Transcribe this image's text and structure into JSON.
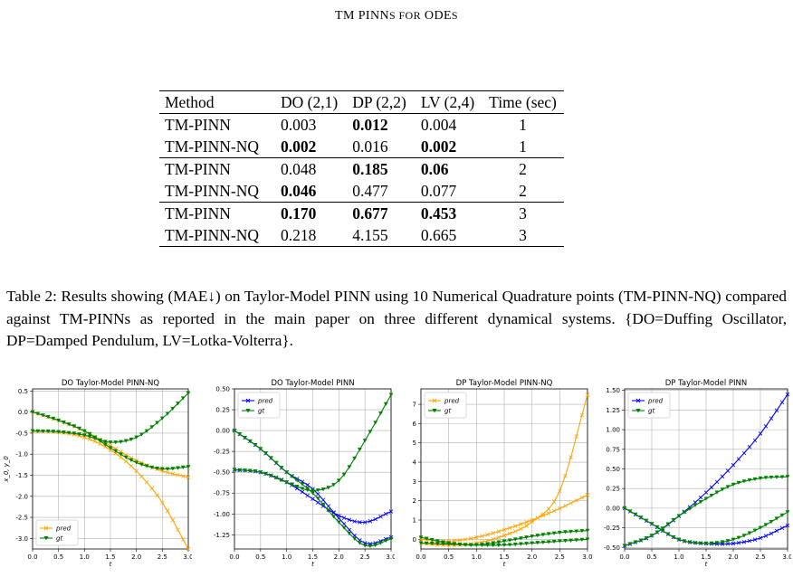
{
  "header": {
    "title_main": "TM PINN",
    "title_sc": "s for",
    "title_end": " ODE",
    "title_sc2": "s"
  },
  "table": {
    "columns": [
      "Method",
      "DO (2,1)",
      "DP (2,2)",
      "LV (2,4)",
      "Time (sec)"
    ],
    "rows": [
      {
        "cells": [
          "TM-PINN",
          "0.003",
          "0.012",
          "0.004",
          "1"
        ],
        "bold": [
          false,
          false,
          true,
          false,
          false
        ]
      },
      {
        "cells": [
          "TM-PINN-NQ",
          "0.002",
          "0.016",
          "0.002",
          "1"
        ],
        "bold": [
          false,
          true,
          false,
          true,
          false
        ]
      },
      {
        "cells": [
          "TM-PINN",
          "0.048",
          "0.185",
          "0.06",
          "2"
        ],
        "bold": [
          false,
          false,
          true,
          true,
          false
        ]
      },
      {
        "cells": [
          "TM-PINN-NQ",
          "0.046",
          "0.477",
          "0.077",
          "2"
        ],
        "bold": [
          false,
          true,
          false,
          false,
          false
        ]
      },
      {
        "cells": [
          "TM-PINN",
          "0.170",
          "0.677",
          "0.453",
          "3"
        ],
        "bold": [
          false,
          true,
          true,
          true,
          false
        ]
      },
      {
        "cells": [
          "TM-PINN-NQ",
          "0.218",
          "4.155",
          "0.665",
          "3"
        ],
        "bold": [
          false,
          false,
          false,
          false,
          false
        ]
      }
    ]
  },
  "caption": "Table 2: Results showing (MAE↓) on Taylor-Model PINN using 10 Numerical Quadrature points (TM-PINN-NQ) compared against TM-PINNs as reported in the main paper on three different dynamical systems. {DO=Duffing Oscillator, DP=Damped Pendulum, LV=Lotka-Volterra}.",
  "colors": {
    "pred_orange": "#ffa500",
    "pred_blue": "#0000ff",
    "gt": "#008000"
  },
  "chart_data": [
    {
      "type": "line",
      "title": "DO Taylor-Model PINN-NQ",
      "xlabel": "t",
      "ylabel": "x_0, y_0",
      "xlim": [
        0,
        3
      ],
      "ylim": [
        -3.25,
        0.55
      ],
      "xticks": [
        "0.0",
        "0.5",
        "1.0",
        "1.5",
        "2.0",
        "2.5",
        "3.0"
      ],
      "yticks": [
        "0.5",
        "0.0",
        "-0.5",
        "-1.0",
        "-1.5",
        "-2.0",
        "-2.5",
        "-3.0"
      ],
      "ytick_values": [
        0.5,
        0.0,
        -0.5,
        -1.0,
        -1.5,
        -2.0,
        -2.5,
        -3.0
      ],
      "legend": {
        "placement": "lower-left",
        "entries": [
          "pred",
          "gt"
        ]
      },
      "grid": true,
      "series": [
        {
          "name": "pred",
          "color": "#ffa500",
          "marker": "x",
          "x": [
            0,
            0.5,
            1,
            1.5,
            2,
            2.5,
            3
          ],
          "y": [
            -0.45,
            -0.48,
            -0.6,
            -0.9,
            -1.4,
            -2.15,
            -3.25
          ]
        },
        {
          "name": "pred",
          "color": "#ffa500",
          "marker": "x",
          "x": [
            0,
            0.5,
            1,
            1.5,
            2,
            2.5,
            3
          ],
          "y": [
            0.0,
            -0.2,
            -0.45,
            -0.8,
            -1.15,
            -1.4,
            -1.55
          ]
        },
        {
          "name": "gt",
          "color": "#008000",
          "marker": "v",
          "x": [
            0,
            0.5,
            1,
            1.5,
            2,
            2.5,
            3
          ],
          "y": [
            -0.45,
            -0.47,
            -0.55,
            -0.72,
            -0.6,
            -0.15,
            0.45
          ]
        },
        {
          "name": "gt",
          "color": "#008000",
          "marker": "v",
          "x": [
            0,
            0.5,
            1,
            1.5,
            2,
            2.5,
            3
          ],
          "y": [
            0.0,
            -0.2,
            -0.45,
            -0.85,
            -1.2,
            -1.35,
            -1.3
          ]
        }
      ]
    },
    {
      "type": "line",
      "title": "DO Taylor-Model PINN",
      "xlabel": "t",
      "ylabel": "",
      "xlim": [
        0,
        3
      ],
      "ylim": [
        -1.42,
        0.5
      ],
      "xticks": [
        "0.0",
        "0.5",
        "1.0",
        "1.5",
        "2.0",
        "2.5",
        "3.0"
      ],
      "yticks": [
        "0.50",
        "0.25",
        "0.00",
        "-0.25",
        "-0.50",
        "-0.75",
        "-1.00",
        "-1.25"
      ],
      "ytick_values": [
        0.5,
        0.25,
        0.0,
        -0.25,
        -0.5,
        -0.75,
        -1.0,
        -1.25
      ],
      "legend": {
        "placement": "upper-left",
        "entries": [
          "pred",
          "gt"
        ]
      },
      "grid": true,
      "series": [
        {
          "name": "pred",
          "color": "#0000ff",
          "marker": "x",
          "x": [
            0,
            0.5,
            1,
            1.5,
            2,
            2.5,
            3
          ],
          "y": [
            -0.47,
            -0.5,
            -0.62,
            -0.82,
            -1.02,
            -1.1,
            -0.97
          ]
        },
        {
          "name": "pred",
          "color": "#0000ff",
          "marker": "x",
          "x": [
            0,
            0.5,
            1,
            1.5,
            2,
            2.5,
            3
          ],
          "y": [
            0.0,
            -0.22,
            -0.5,
            -0.7,
            -1.05,
            -1.35,
            -1.28
          ]
        },
        {
          "name": "gt",
          "color": "#008000",
          "marker": "v",
          "x": [
            0,
            0.5,
            1,
            1.5,
            2,
            2.5,
            3
          ],
          "y": [
            -0.47,
            -0.5,
            -0.62,
            -0.72,
            -0.6,
            -0.12,
            0.43
          ]
        },
        {
          "name": "gt",
          "color": "#008000",
          "marker": "v",
          "x": [
            0,
            0.5,
            1,
            1.5,
            2,
            2.5,
            3
          ],
          "y": [
            0.0,
            -0.22,
            -0.5,
            -0.75,
            -1.1,
            -1.38,
            -1.3
          ]
        }
      ]
    },
    {
      "type": "line",
      "title": "DP Taylor-Model PINN-NQ",
      "xlabel": "t",
      "ylabel": "",
      "xlim": [
        0,
        3
      ],
      "ylim": [
        -0.5,
        7.8
      ],
      "xticks": [
        "0.0",
        "0.5",
        "1.0",
        "1.5",
        "2.0",
        "2.5",
        "3.0"
      ],
      "yticks": [
        "7",
        "6",
        "5",
        "4",
        "3",
        "2",
        "1",
        "0"
      ],
      "ytick_values": [
        7,
        6,
        5,
        4,
        3,
        2,
        1,
        0
      ],
      "legend": {
        "placement": "upper-left",
        "entries": [
          "pred",
          "gt"
        ]
      },
      "grid": true,
      "series": [
        {
          "name": "pred",
          "color": "#ffa500",
          "marker": "x",
          "x": [
            0,
            0.5,
            1,
            1.5,
            2,
            2.5,
            3
          ],
          "y": [
            -0.2,
            -0.3,
            -0.2,
            0.2,
            0.9,
            2.5,
            7.5
          ]
        },
        {
          "name": "pred",
          "color": "#ffa500",
          "marker": "x",
          "x": [
            0,
            0.5,
            1,
            1.5,
            2,
            2.5,
            3
          ],
          "y": [
            0.0,
            -0.1,
            0.1,
            0.5,
            1.0,
            1.6,
            2.3
          ]
        },
        {
          "name": "gt",
          "color": "#008000",
          "marker": "v",
          "x": [
            0,
            0.5,
            1,
            1.5,
            2,
            2.5,
            3
          ],
          "y": [
            0.1,
            -0.2,
            -0.3,
            -0.1,
            0.15,
            0.35,
            0.45
          ]
        },
        {
          "name": "gt",
          "color": "#008000",
          "marker": "v",
          "x": [
            0,
            0.5,
            1,
            1.5,
            2,
            2.5,
            3
          ],
          "y": [
            -0.2,
            -0.25,
            -0.3,
            -0.3,
            -0.2,
            -0.1,
            0.0
          ]
        }
      ]
    },
    {
      "type": "line",
      "title": "DP Taylor-Model PINN",
      "xlabel": "t",
      "ylabel": "",
      "xlim": [
        0,
        3
      ],
      "ylim": [
        -0.52,
        1.52
      ],
      "xticks": [
        "0.0",
        "0.5",
        "1.0",
        "1.5",
        "2.0",
        "2.5",
        "3.0"
      ],
      "yticks": [
        "1.50",
        "1.25",
        "1.00",
        "0.75",
        "0.50",
        "0.25",
        "0.00",
        "-0.25",
        "-0.50"
      ],
      "ytick_values": [
        1.5,
        1.25,
        1.0,
        0.75,
        0.5,
        0.25,
        0.0,
        -0.25,
        -0.5
      ],
      "legend": {
        "placement": "upper-left",
        "entries": [
          "pred",
          "gt"
        ]
      },
      "grid": true,
      "series": [
        {
          "name": "pred",
          "color": "#0000ff",
          "marker": "x",
          "x": [
            0,
            0.5,
            1,
            1.5,
            2,
            2.5,
            3
          ],
          "y": [
            -0.48,
            -0.35,
            -0.1,
            0.2,
            0.55,
            0.95,
            1.45
          ]
        },
        {
          "name": "pred",
          "color": "#0000ff",
          "marker": "x",
          "x": [
            0,
            0.5,
            1,
            1.5,
            2,
            2.5,
            3
          ],
          "y": [
            0.0,
            -0.2,
            -0.4,
            -0.45,
            -0.45,
            -0.38,
            -0.22
          ]
        },
        {
          "name": "gt",
          "color": "#008000",
          "marker": "v",
          "x": [
            0,
            0.5,
            1,
            1.5,
            2,
            2.5,
            3
          ],
          "y": [
            -0.48,
            -0.35,
            -0.1,
            0.12,
            0.3,
            0.38,
            0.4
          ]
        },
        {
          "name": "gt",
          "color": "#008000",
          "marker": "v",
          "x": [
            0,
            0.5,
            1,
            1.5,
            2,
            2.5,
            3
          ],
          "y": [
            0.0,
            -0.2,
            -0.4,
            -0.45,
            -0.4,
            -0.25,
            -0.05
          ]
        }
      ]
    }
  ]
}
